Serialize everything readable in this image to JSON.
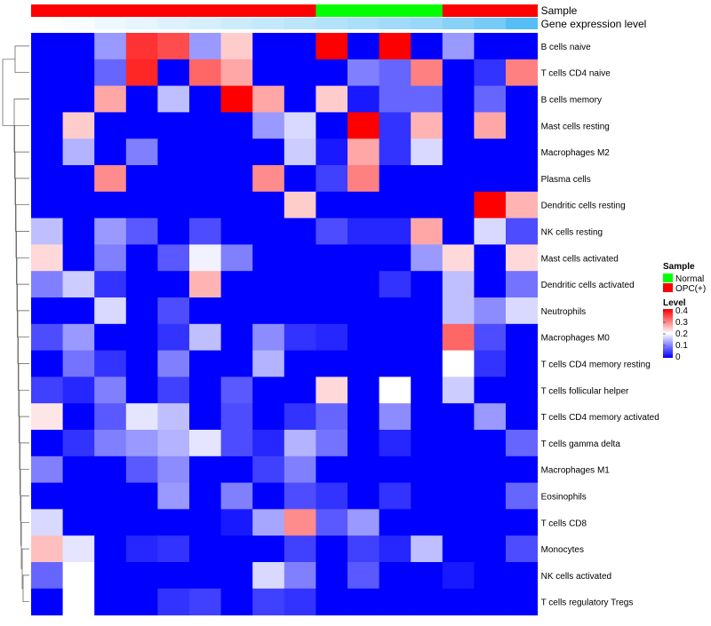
{
  "chart_data": {
    "type": "heatmap",
    "annotation_tracks": [
      {
        "label": "Sample",
        "cells": [
          "OPC(+)",
          "OPC(+)",
          "OPC(+)",
          "OPC(+)",
          "OPC(+)",
          "OPC(+)",
          "OPC(+)",
          "OPC(+)",
          "OPC(+)",
          "Normal",
          "Normal",
          "Normal",
          "Normal",
          "OPC(+)",
          "OPC(+)",
          "OPC(+)"
        ]
      },
      {
        "label": "Gene expression level",
        "cells": [
          0.0,
          0.05,
          0.1,
          0.15,
          0.2,
          0.25,
          0.3,
          0.35,
          0.4,
          0.45,
          0.5,
          0.55,
          0.6,
          0.7,
          0.8,
          1.0
        ]
      }
    ],
    "rows": [
      "B cells naive",
      "T cells CD4 naive",
      "B cells memory",
      "Mast cells resting",
      "Macrophages M2",
      "Plasma cells",
      "Dendritic cells resting",
      "NK cells resting",
      "Mast cells activated",
      "Dendritic cells activated",
      "Neutrophils",
      "Macrophages M0",
      "T cells CD4 memory resting",
      "T cells follicular helper",
      "T cells CD4 memory activated",
      "T cells gamma delta",
      "Macrophages M1",
      "Eosinophils",
      "T cells CD8",
      "Monocytes",
      "NK cells activated",
      "T cells regulatory  Tregs"
    ],
    "values": [
      [
        0,
        0,
        0.12,
        0.36,
        0.34,
        0.12,
        0.24,
        0,
        0,
        0.4,
        0,
        0.4,
        0,
        0.12,
        0,
        0
      ],
      [
        0,
        0,
        0.08,
        0.37,
        0,
        0.32,
        0.27,
        0,
        0,
        0,
        0.1,
        0.08,
        0.3,
        0,
        0.04,
        0.3
      ],
      [
        0,
        0,
        0.27,
        0,
        0.15,
        0,
        0.4,
        0.27,
        0,
        0.24,
        0.02,
        0.08,
        0.08,
        0,
        0.08,
        0
      ],
      [
        0,
        0.24,
        0,
        0,
        0,
        0,
        0,
        0.12,
        0.17,
        0,
        0.4,
        0.04,
        0.26,
        0,
        0.27,
        0
      ],
      [
        0,
        0.14,
        0,
        0.1,
        0,
        0,
        0,
        0,
        0.16,
        0.02,
        0.27,
        0.04,
        0.17,
        0,
        0,
        0
      ],
      [
        0,
        0,
        0.29,
        0,
        0,
        0,
        0,
        0.29,
        0,
        0.05,
        0.3,
        0,
        0,
        0,
        0,
        0
      ],
      [
        0,
        0,
        0,
        0,
        0,
        0,
        0,
        0,
        0.24,
        0,
        0,
        0,
        0,
        0,
        0.4,
        0.26
      ],
      [
        0.15,
        0,
        0.12,
        0.07,
        0,
        0.06,
        0,
        0,
        0,
        0.06,
        0.03,
        0.03,
        0.27,
        0,
        0.17,
        0.06
      ],
      [
        0.23,
        0,
        0.1,
        0,
        0.07,
        0.19,
        0.1,
        0,
        0,
        0,
        0,
        0,
        0.12,
        0.23,
        0,
        0.23
      ],
      [
        0.1,
        0.16,
        0.04,
        0,
        0,
        0.26,
        0,
        0,
        0,
        0,
        0,
        0.04,
        0,
        0.15,
        0,
        0.09
      ],
      [
        0,
        0,
        0.17,
        0,
        0.06,
        0,
        0,
        0,
        0,
        0,
        0,
        0,
        0,
        0.15,
        0.11,
        0.17
      ],
      [
        0.06,
        0.12,
        0,
        0,
        0.04,
        0.15,
        0,
        0.11,
        0.04,
        0.03,
        0,
        0,
        0,
        0.32,
        0.06,
        0
      ],
      [
        0,
        0.09,
        0.04,
        0,
        0.1,
        0,
        0,
        0.14,
        0,
        0,
        0,
        0,
        0,
        0.2,
        0.04,
        0
      ],
      [
        0.05,
        0.03,
        0.1,
        0,
        0.05,
        0,
        0.07,
        0,
        0,
        0.23,
        0,
        0.2,
        0,
        0.16,
        0,
        0
      ],
      [
        0.22,
        0,
        0.07,
        0.18,
        0.15,
        0,
        0.06,
        0,
        0.04,
        0.08,
        0,
        0.11,
        0,
        0,
        0.12,
        0
      ],
      [
        0,
        0.04,
        0.1,
        0.12,
        0.14,
        0.18,
        0.06,
        0.03,
        0.14,
        0.09,
        0,
        0.03,
        0,
        0,
        0,
        0.08
      ],
      [
        0.1,
        0,
        0,
        0.07,
        0.11,
        0,
        0,
        0.05,
        0.1,
        0,
        0,
        0,
        0,
        0,
        0,
        0
      ],
      [
        0,
        0,
        0,
        0,
        0.12,
        0,
        0.1,
        0,
        0.06,
        0.04,
        0,
        0.04,
        0,
        0,
        0,
        0.08
      ],
      [
        0.17,
        0,
        0,
        0,
        0,
        0,
        0.02,
        0.13,
        0.29,
        0.07,
        0.12,
        0,
        0,
        0,
        0,
        0
      ],
      [
        0.25,
        0.18,
        0,
        0.03,
        0.04,
        0,
        0,
        0,
        0.05,
        0,
        0.05,
        0.03,
        0.15,
        0,
        0,
        0.06
      ],
      [
        0.08,
        0.2,
        0,
        0,
        0,
        0,
        0,
        0.17,
        0.1,
        0,
        0.07,
        0,
        0,
        0.02,
        0,
        0
      ],
      [
        0,
        0.2,
        0,
        0,
        0.04,
        0.05,
        0,
        0.05,
        0.04,
        0,
        0,
        0,
        0,
        0,
        0,
        0
      ]
    ],
    "legend": {
      "sample_title": "Sample",
      "sample_entries": [
        {
          "label": "Normal",
          "color": "#00ff00"
        },
        {
          "label": "OPC(+)",
          "color": "#ff0000"
        }
      ],
      "level_title": "Level",
      "level_ticks": [
        "0.4",
        "0.3",
        "0.2",
        "0.1",
        "0"
      ]
    },
    "color_scale": {
      "low": "#0000ff",
      "mid": "#ffffff",
      "high": "#ff0000",
      "min": 0,
      "max": 0.4
    },
    "dendrogram": "rows"
  }
}
